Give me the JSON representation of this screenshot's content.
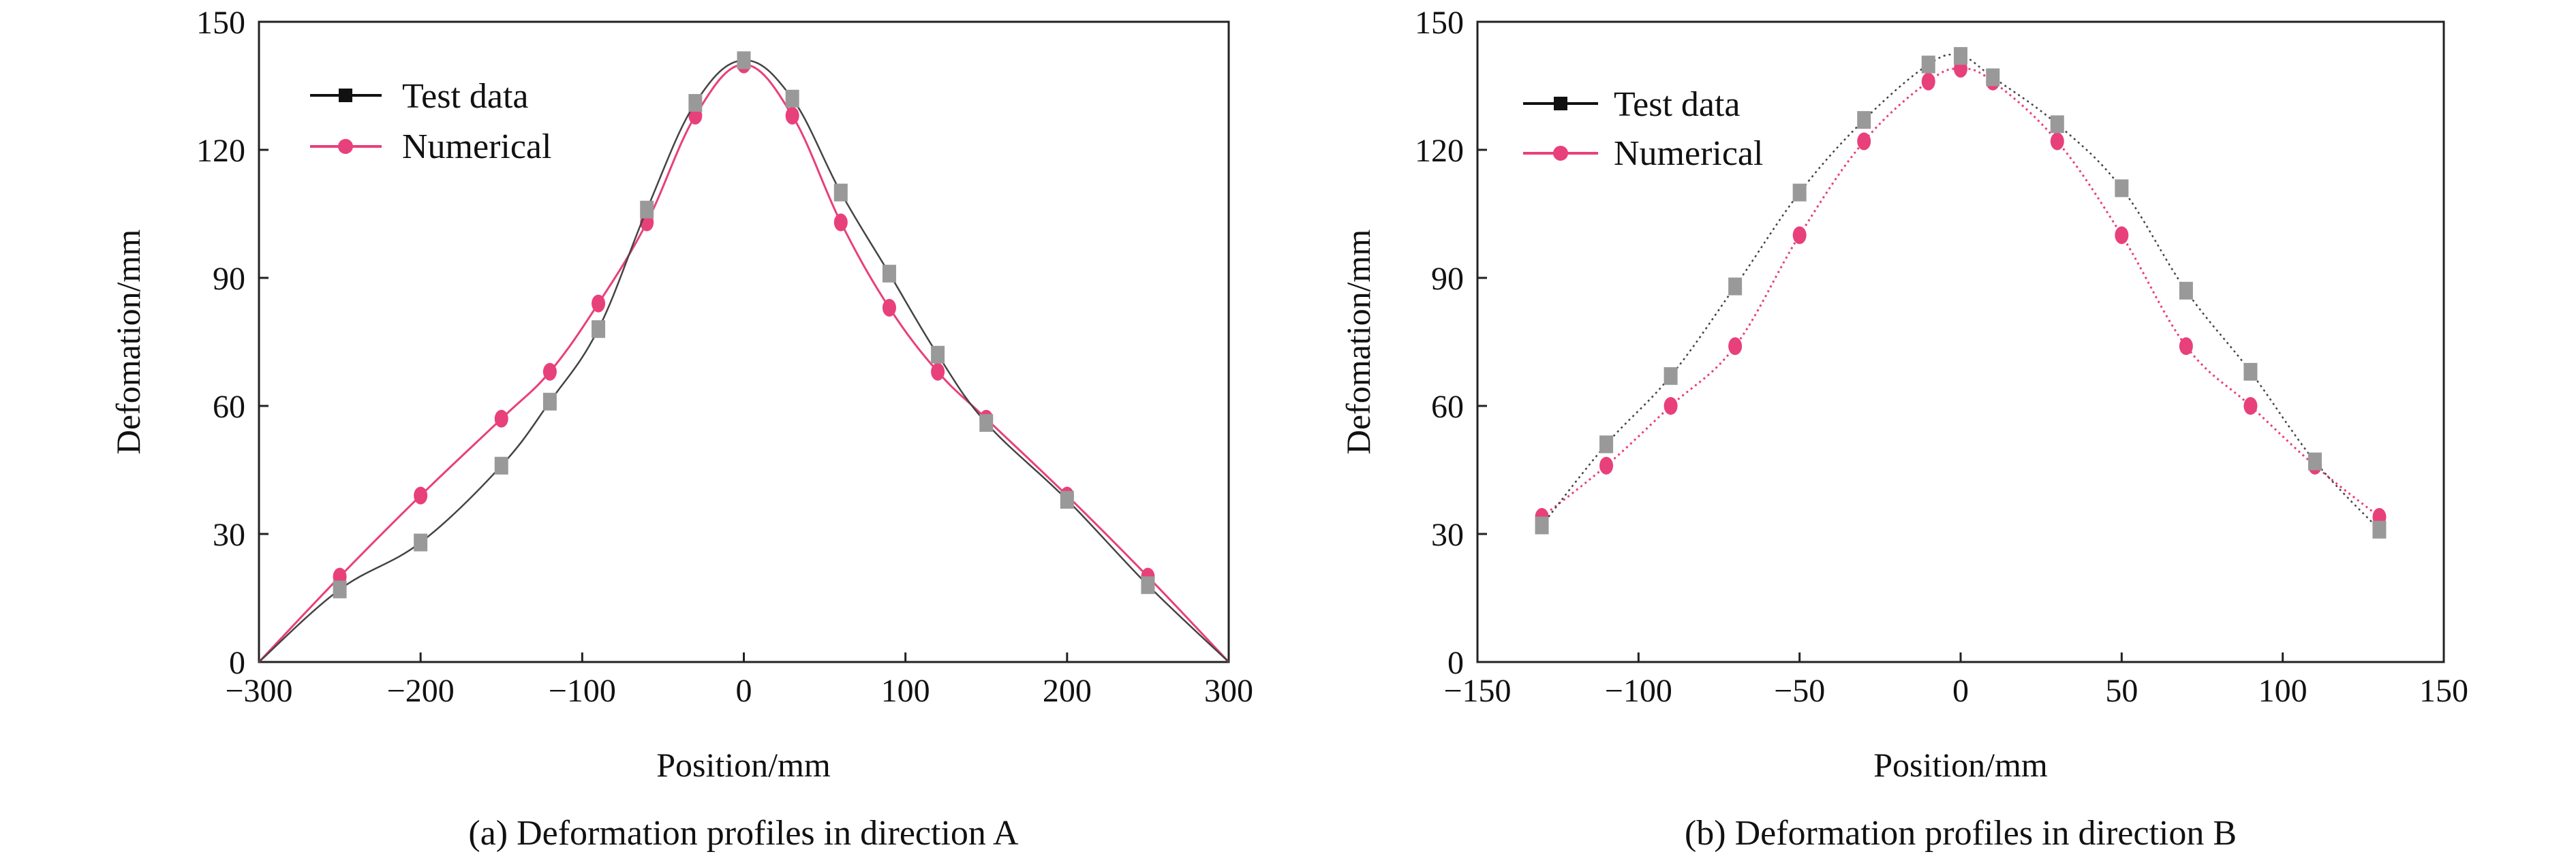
{
  "chart_data": [
    {
      "type": "line",
      "caption": "(a) Deformation profiles in direction A",
      "xlabel": "Position/mm",
      "ylabel": "Defomation/mm",
      "xlim": [
        -300,
        300
      ],
      "ylim": [
        0,
        150
      ],
      "xticks": [
        -300,
        -200,
        -100,
        0,
        100,
        200,
        300
      ],
      "xtick_labels": [
        "−300",
        "−200",
        "−100",
        "0",
        "100",
        "200",
        "300"
      ],
      "yticks": [
        0,
        30,
        60,
        90,
        120,
        150
      ],
      "legend_position": "top-left",
      "series": [
        {
          "name": "Test data",
          "color": "#999999",
          "line_color": "#444444",
          "marker": "square",
          "x": [
            -300,
            -250,
            -200,
            -150,
            -120,
            -90,
            -60,
            -30,
            0,
            30,
            60,
            90,
            120,
            150,
            200,
            250,
            300
          ],
          "y": [
            0,
            17,
            28,
            46,
            61,
            78,
            106,
            131,
            141,
            132,
            110,
            91,
            72,
            56,
            38,
            18,
            0
          ]
        },
        {
          "name": "Numerical",
          "color": "#e8407a",
          "line_color": "#e8407a",
          "marker": "circle",
          "x": [
            -300,
            -250,
            -200,
            -150,
            -120,
            -90,
            -60,
            -30,
            0,
            30,
            60,
            90,
            120,
            150,
            200,
            250,
            300
          ],
          "y": [
            0,
            20,
            39,
            57,
            68,
            84,
            103,
            128,
            140,
            128,
            103,
            83,
            68,
            57,
            39,
            20,
            0
          ]
        }
      ]
    },
    {
      "type": "line",
      "caption": "(b) Deformation profiles in direction B",
      "xlabel": "Position/mm",
      "ylabel": "Defomation/mm",
      "xlim": [
        -150,
        150
      ],
      "ylim": [
        0,
        150
      ],
      "xticks": [
        -150,
        -100,
        -50,
        0,
        50,
        100,
        150
      ],
      "xtick_labels": [
        "−150",
        "−100",
        "−50",
        "0",
        "50",
        "100",
        "150"
      ],
      "yticks": [
        0,
        30,
        60,
        90,
        120,
        150
      ],
      "legend_position": "top-left",
      "series": [
        {
          "name": "Test data",
          "color": "#999999",
          "line_color": "#444444",
          "marker": "square",
          "x": [
            -130,
            -110,
            -90,
            -70,
            -50,
            -30,
            -10,
            0,
            10,
            30,
            50,
            70,
            90,
            110,
            130
          ],
          "y": [
            32,
            51,
            67,
            88,
            110,
            127,
            140,
            142,
            137,
            126,
            111,
            87,
            68,
            47,
            31
          ]
        },
        {
          "name": "Numerical",
          "color": "#e8407a",
          "line_color": "#e8407a",
          "marker": "circle",
          "x": [
            -130,
            -110,
            -90,
            -70,
            -50,
            -30,
            -10,
            0,
            10,
            30,
            50,
            70,
            90,
            110,
            130
          ],
          "y": [
            34,
            46,
            60,
            74,
            100,
            122,
            136,
            139,
            136,
            122,
            100,
            74,
            60,
            46,
            34
          ]
        }
      ]
    }
  ]
}
